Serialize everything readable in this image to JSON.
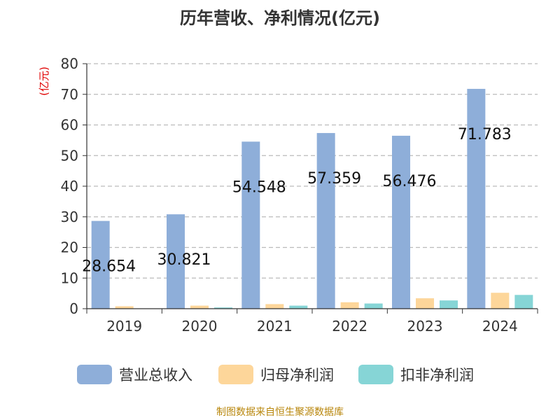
{
  "chart_data": {
    "type": "bar",
    "title": "历年营收、净利情况(亿元)",
    "ylabel": "(亿元)",
    "xlabel": "",
    "ylim": [
      0,
      80
    ],
    "yticks": [
      0,
      10,
      20,
      30,
      40,
      50,
      60,
      70,
      80
    ],
    "categories": [
      "2019",
      "2020",
      "2021",
      "2022",
      "2023",
      "2024"
    ],
    "series": [
      {
        "name": "营业总收入",
        "color": "#8eaed9",
        "values": [
          28.654,
          30.821,
          54.548,
          57.359,
          56.476,
          71.783
        ],
        "labels": [
          "28.654",
          "30.821",
          "54.548",
          "57.359",
          "56.476",
          "71.783"
        ]
      },
      {
        "name": "归母净利润",
        "color": "#fdd69a",
        "values": [
          0.8,
          1.0,
          1.5,
          2.1,
          3.4,
          5.2
        ]
      },
      {
        "name": "扣非净利润",
        "color": "#86d5d6",
        "values": [
          0.1,
          0.4,
          1.0,
          1.7,
          2.7,
          4.5
        ]
      }
    ],
    "grid": true,
    "legend_position": "bottom"
  },
  "footer": {
    "source": "制图数据来自恒生聚源数据库"
  }
}
